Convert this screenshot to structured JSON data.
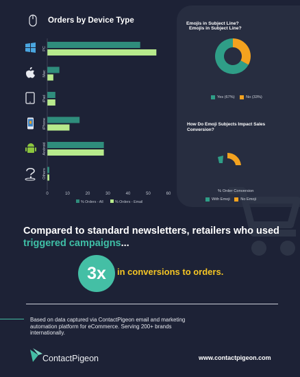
{
  "header": {
    "title": "Orders by Device Type"
  },
  "chart_data": [
    {
      "type": "bar",
      "orientation": "horizontal",
      "title": "Orders by Device Type",
      "categories": [
        "PC",
        "Mac",
        "iPad",
        "iPhone",
        "Android",
        "Others"
      ],
      "series": [
        {
          "name": "% Orders - All",
          "values": [
            46,
            6,
            4,
            16,
            28,
            1
          ],
          "color": "#2f8d7c"
        },
        {
          "name": "% Orders - Email",
          "values": [
            54,
            3,
            4,
            11,
            28,
            1
          ],
          "color": "#b7ea8c"
        }
      ],
      "xticks": [
        "0",
        "10",
        "20",
        "30",
        "40",
        "50",
        "60"
      ],
      "xlim": [
        0,
        60
      ],
      "legend": "bottom"
    },
    {
      "type": "pie",
      "title": "Emojis in Subject Line?",
      "title_repeat": "Emojis in Subject Line?",
      "categories": [
        "Yes (67%)",
        "No (33%)"
      ],
      "values": [
        67,
        33
      ],
      "colors": [
        "#2f9e87",
        "#f3a21f"
      ],
      "donut": true,
      "legend": "bottom"
    },
    {
      "type": "pie",
      "title": "How Do Emoji Subjects Impact Sales Conversion?",
      "xlabel": "% Order Conversion",
      "categories": [
        "With Emoji",
        "No Emoji"
      ],
      "colors": [
        "#2f9e87",
        "#f3a21f"
      ],
      "legend": "bottom"
    }
  ],
  "headline": {
    "line1": "Compared to standard newsletters, retailers who used",
    "highlight": "triggered campaigns",
    "tail": "..."
  },
  "stat": {
    "value": "3x",
    "label": "in conversions to orders."
  },
  "footer": {
    "note": "Based on data captured via ContactPigeon email and marketing automation platform for eCommerce. Serving 200+ brands internationally.",
    "brand": "ContactPigeon",
    "url": "www.contactpigeon.com"
  }
}
